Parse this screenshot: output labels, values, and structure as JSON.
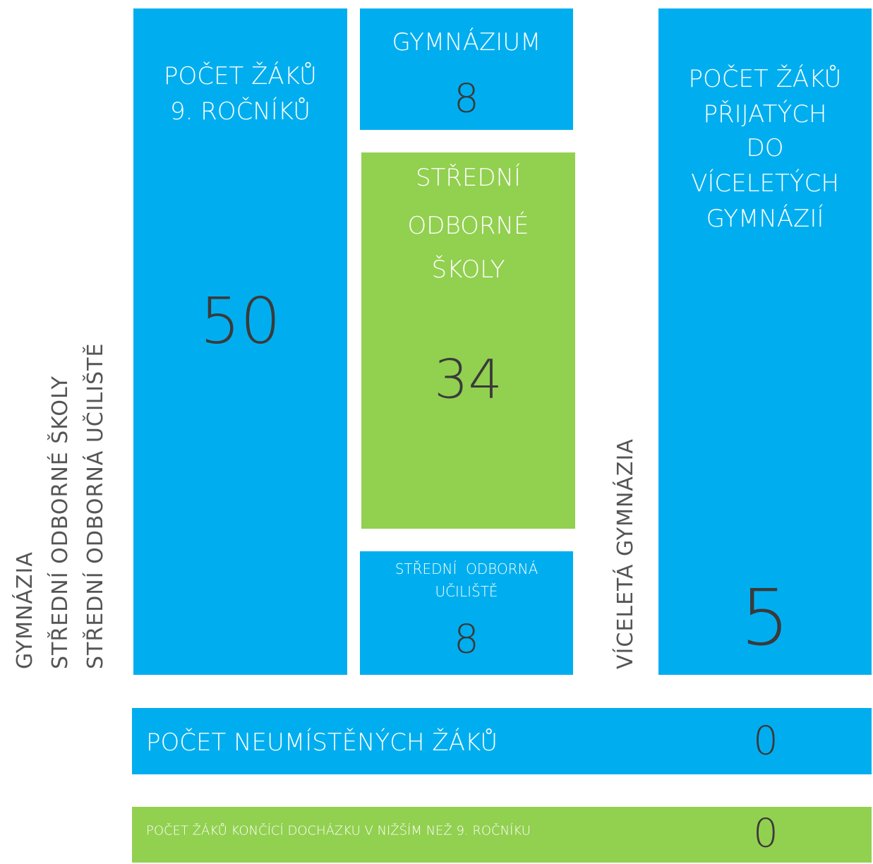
{
  "side_labels": [
    "GYMNÁZIA",
    "STŘEDNÍ ODBORNÉ ŠKOLY",
    "STŘEDNÍ ODBORNÁ UČILIŠTĚ"
  ],
  "tiles": [
    {
      "title": [
        "POČET ŽÁKŮ",
        "9. ROČNÍKŮ"
      ],
      "value": 50
    },
    {
      "title": [
        "GYMNÁZIUM"
      ],
      "value": 8
    },
    {
      "title": [
        "STŘEDNÍ",
        "ODBORNÉ",
        "ŠKOLY"
      ],
      "value": 34
    },
    {
      "title": [
        "STŘEDNÍ  ODBORNÁ",
        "UČILIŠTĚ"
      ],
      "value": 8
    },
    {
      "title": [
        "POČET ŽÁKŮ",
        "PŘIJATÝCH",
        "DO",
        "VÍCELETÝCH",
        "GYMNÁZIÍ"
      ],
      "value": 5
    }
  ],
  "multi_year_label": "VÍCELETÁ GYMNÁZIA",
  "bars": [
    {
      "label": "POČET NEUMÍSTĚNÝCH ŽÁKŮ",
      "value": 0
    },
    {
      "label": "POČET ŽÁKŮ KONČÍCÍ DOCHÁZKU V NIŽŠÍM NEŽ 9. ROČNÍKU",
      "value": 0
    }
  ]
}
